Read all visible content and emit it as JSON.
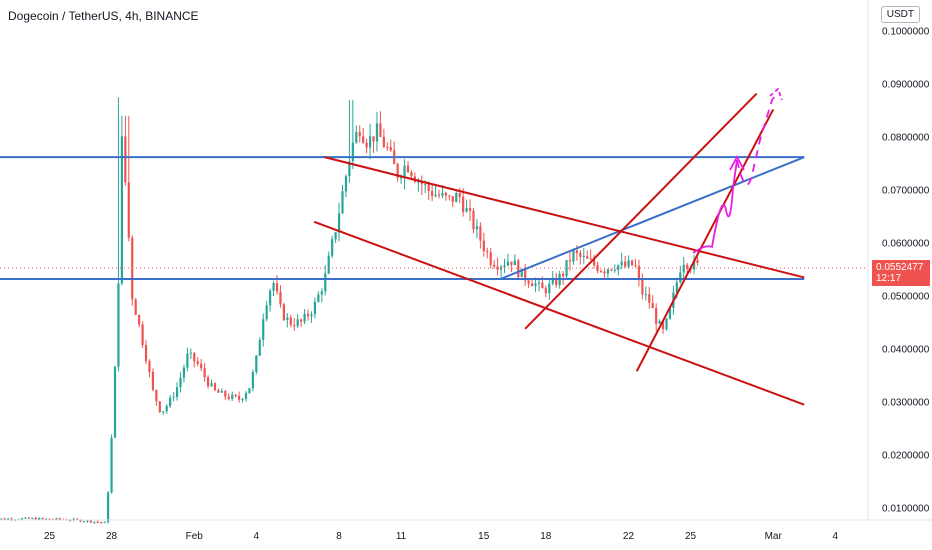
{
  "header": {
    "title": "Dogecoin / TetherUS, 4h, BINANCE",
    "currency": "USDT"
  },
  "price_label": {
    "value": "0.0552477",
    "countdown": "12:17",
    "color": "#ef5350"
  },
  "colors": {
    "up": "#26a69a",
    "down": "#ef5350",
    "blue_line": "#3a70c8",
    "red_line": "#cc1111",
    "magenta": "#e61ee6"
  },
  "chart_data": {
    "type": "candlestick",
    "title": "Dogecoin / TetherUS, 4h, BINANCE",
    "y_ticks": [
      "0.1000000",
      "0.0900000",
      "0.0800000",
      "0.0700000",
      "0.0600000",
      "0.0500000",
      "0.0400000",
      "0.0300000",
      "0.0200000",
      "0.0100000"
    ],
    "y_tick_values": [
      0.1,
      0.09,
      0.08,
      0.07,
      0.06,
      0.05,
      0.04,
      0.03,
      0.02,
      0.01
    ],
    "ylim": [
      0.0058,
      0.1057
    ],
    "x_ticks": [
      "25",
      "28",
      "Feb",
      "4",
      "8",
      "11",
      "15",
      "18",
      "22",
      "25",
      "Mar",
      "4"
    ],
    "x_tick_days": [
      -7,
      -4,
      0,
      3,
      7,
      10,
      14,
      17,
      21,
      24,
      28,
      31
    ],
    "x_start_day": -10,
    "x_end_day": 31.5,
    "candle_days_per_bar": 0.1667,
    "last_price": 0.0552477,
    "price_path": [
      [
        -10,
        0.0079
      ],
      [
        -8,
        0.008
      ],
      [
        -6,
        0.0078
      ],
      [
        -5,
        0.0075
      ],
      [
        -4.3,
        0.0072
      ],
      [
        -4.1,
        0.016
      ],
      [
        -3.9,
        0.03
      ],
      [
        -3.7,
        0.048
      ],
      [
        -3.5,
        0.079
      ],
      [
        -3.3,
        0.07
      ],
      [
        -3.0,
        0.05
      ],
      [
        -2.7,
        0.045
      ],
      [
        -2.3,
        0.038
      ],
      [
        -2.0,
        0.032
      ],
      [
        -1.6,
        0.028
      ],
      [
        -1.2,
        0.03
      ],
      [
        -0.8,
        0.033
      ],
      [
        -0.3,
        0.039
      ],
      [
        0.2,
        0.037
      ],
      [
        0.6,
        0.034
      ],
      [
        1.0,
        0.032
      ],
      [
        1.6,
        0.031
      ],
      [
        2.2,
        0.0305
      ],
      [
        2.7,
        0.033
      ],
      [
        3.0,
        0.038
      ],
      [
        3.4,
        0.048
      ],
      [
        3.8,
        0.053
      ],
      [
        4.2,
        0.047
      ],
      [
        4.6,
        0.045
      ],
      [
        5.2,
        0.045
      ],
      [
        5.8,
        0.048
      ],
      [
        6.3,
        0.053
      ],
      [
        6.8,
        0.062
      ],
      [
        7.2,
        0.07
      ],
      [
        7.6,
        0.078
      ],
      [
        8.0,
        0.082
      ],
      [
        8.4,
        0.079
      ],
      [
        8.8,
        0.081
      ],
      [
        9.3,
        0.078
      ],
      [
        9.8,
        0.073
      ],
      [
        10.3,
        0.075
      ],
      [
        10.8,
        0.072
      ],
      [
        11.3,
        0.07
      ],
      [
        11.8,
        0.069
      ],
      [
        12.3,
        0.068
      ],
      [
        12.8,
        0.069
      ],
      [
        13.3,
        0.065
      ],
      [
        13.8,
        0.061
      ],
      [
        14.3,
        0.057
      ],
      [
        14.8,
        0.056
      ],
      [
        15.3,
        0.057
      ],
      [
        15.8,
        0.054
      ],
      [
        16.3,
        0.053
      ],
      [
        16.8,
        0.051
      ],
      [
        17.3,
        0.052
      ],
      [
        17.8,
        0.054
      ],
      [
        18.3,
        0.058
      ],
      [
        18.8,
        0.057
      ],
      [
        19.3,
        0.056
      ],
      [
        19.8,
        0.055
      ],
      [
        20.3,
        0.056
      ],
      [
        20.8,
        0.0555
      ],
      [
        21.3,
        0.056
      ],
      [
        21.6,
        0.051
      ],
      [
        22.0,
        0.049
      ],
      [
        22.4,
        0.045
      ],
      [
        22.7,
        0.043
      ],
      [
        23.0,
        0.047
      ],
      [
        23.3,
        0.052
      ],
      [
        23.6,
        0.057
      ],
      [
        24.0,
        0.056
      ],
      [
        24.4,
        0.0555
      ]
    ],
    "drawings": {
      "hlines": [
        {
          "y": 0.0762,
          "x1": -11,
          "x2": 29.5,
          "color": "blue"
        },
        {
          "y": 0.0532,
          "x1": -11,
          "x2": 29.5,
          "color": "blue"
        }
      ],
      "segments": [
        {
          "p1": [
            14.8,
            0.0532
          ],
          "p2": [
            29.5,
            0.0762
          ],
          "color": "blue"
        },
        {
          "p1": [
            6.3,
            0.0762
          ],
          "p2": [
            29.5,
            0.0535
          ],
          "color": "red"
        },
        {
          "p1": [
            5.8,
            0.064
          ],
          "p2": [
            29.5,
            0.0295
          ],
          "color": "red"
        },
        {
          "p1": [
            16.0,
            0.0438
          ],
          "p2": [
            27.2,
            0.0882
          ],
          "color": "red"
        },
        {
          "p1": [
            21.4,
            0.0358
          ],
          "p2": [
            28.0,
            0.0852
          ],
          "color": "red"
        }
      ]
    }
  }
}
